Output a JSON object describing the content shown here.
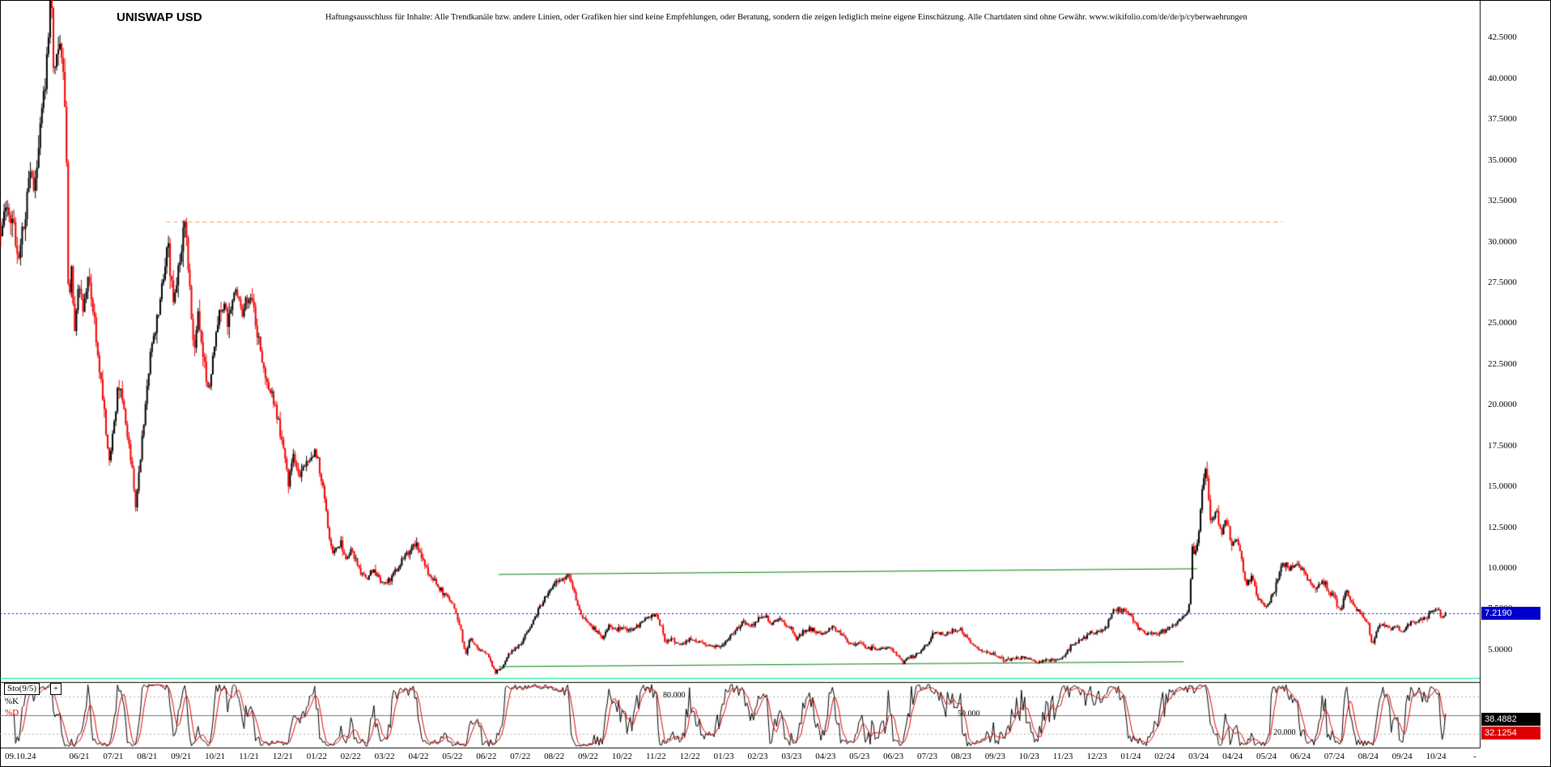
{
  "header": {
    "title": "UNISWAP USD",
    "disclaimer": "Haftungsausschluss für Inhalte: Alle Trendkanäle bzw. andere Linien, oder Grafiken hier sind keine Empfehlungen, oder Beratung, sondern die zeigen lediglich meine eigene Einschätzung. Alle Chartdaten sind ohne Gewähr.  www.wikifolio.com/de/de/p/cyberwaehrungen"
  },
  "price_axis": {
    "ticks": [
      "42.5000",
      "40.0000",
      "37.5000",
      "35.0000",
      "32.5000",
      "30.0000",
      "27.5000",
      "25.0000",
      "22.5000",
      "20.0000",
      "17.5000",
      "15.0000",
      "12.5000",
      "10.0000",
      "7.5000",
      "5.0000"
    ],
    "last_price": "7.2190",
    "last_price_value": 7.219,
    "badge_color": "#0000cd"
  },
  "time_axis": {
    "first_label": "09.10.24",
    "month_labels": [
      "06/21",
      "07/21",
      "08/21",
      "09/21",
      "10/21",
      "11/21",
      "12/21",
      "01/22",
      "02/22",
      "03/22",
      "04/22",
      "05/22",
      "06/22",
      "07/22",
      "08/22",
      "09/22",
      "10/22",
      "11/22",
      "12/22",
      "01/23",
      "02/23",
      "03/23",
      "04/23",
      "05/23",
      "06/23",
      "07/23",
      "08/23",
      "09/23",
      "10/23",
      "11/23",
      "12/23",
      "01/24",
      "02/24",
      "03/24",
      "04/24",
      "05/24",
      "06/24",
      "07/24",
      "08/24",
      "09/24",
      "10/24"
    ],
    "end_dash": "-"
  },
  "indicator": {
    "name_label": "Sto(9/5)",
    "add_button": "+",
    "k_label": "%K",
    "d_label": "%D",
    "k_value": "38.4882",
    "d_value": "32.1254",
    "k_color": "#000000",
    "d_color": "#e00000",
    "levels": [
      {
        "label": "80.000",
        "value": 80
      },
      {
        "label": "50.000",
        "value": 50
      },
      {
        "label": "20.000",
        "value": 20
      }
    ]
  },
  "chart_data": {
    "type": "candlestick",
    "title": "UNISWAP USD",
    "ylim": [
      3.0,
      44.8
    ],
    "y_ticks": [
      42.5,
      40,
      37.5,
      35,
      32.5,
      30,
      27.5,
      25,
      22.5,
      20,
      17.5,
      15,
      12.5,
      10,
      7.5,
      5
    ],
    "x_labels": [
      "06/21",
      "07/21",
      "08/21",
      "09/21",
      "10/21",
      "11/21",
      "12/21",
      "01/22",
      "02/22",
      "03/22",
      "04/22",
      "05/22",
      "06/22",
      "07/22",
      "08/22",
      "09/22",
      "10/22",
      "11/22",
      "12/22",
      "01/23",
      "02/23",
      "03/23",
      "04/23",
      "05/23",
      "06/23",
      "07/23",
      "08/23",
      "09/23",
      "10/23",
      "11/23",
      "12/23",
      "01/24",
      "02/24",
      "03/24",
      "04/24",
      "05/24",
      "06/24",
      "07/24",
      "08/24",
      "09/24",
      "10/24"
    ],
    "last_price": 7.219,
    "months_span": 42.64,
    "colors": {
      "up": "#000000",
      "down": "#f20000",
      "grid_dotted": "#aaaaaa",
      "grid_mid": "#777777"
    },
    "price_keyframes": [
      [
        0,
        30.5
      ],
      [
        0.2,
        32.5
      ],
      [
        0.4,
        30.8
      ],
      [
        0.55,
        28.8
      ],
      [
        0.75,
        31.5
      ],
      [
        0.9,
        35
      ],
      [
        1,
        32.8
      ],
      [
        1.15,
        36.5
      ],
      [
        1.34,
        39.5
      ],
      [
        1.45,
        43.2
      ],
      [
        1.52,
        44.8
      ],
      [
        1.6,
        40
      ],
      [
        1.72,
        42.6
      ],
      [
        1.85,
        40.5
      ],
      [
        1.95,
        37
      ],
      [
        2.02,
        26
      ],
      [
        2.1,
        29
      ],
      [
        2.2,
        24.5
      ],
      [
        2.32,
        28
      ],
      [
        2.45,
        25.5
      ],
      [
        2.6,
        28
      ],
      [
        2.8,
        24.5
      ],
      [
        3,
        21
      ],
      [
        3.2,
        16.8
      ],
      [
        3.35,
        18.5
      ],
      [
        3.5,
        21.5
      ],
      [
        3.65,
        19.5
      ],
      [
        3.85,
        17
      ],
      [
        4,
        13.8
      ],
      [
        4.2,
        18
      ],
      [
        4.4,
        22.5
      ],
      [
        4.6,
        24.8
      ],
      [
        4.8,
        27.5
      ],
      [
        4.95,
        29.5
      ],
      [
        5.1,
        26.5
      ],
      [
        5.25,
        28
      ],
      [
        5.44,
        31.2
      ],
      [
        5.6,
        27
      ],
      [
        5.7,
        23.5
      ],
      [
        5.85,
        25.5
      ],
      [
        6,
        22.5
      ],
      [
        6.15,
        21
      ],
      [
        6.35,
        24
      ],
      [
        6.55,
        26.5
      ],
      [
        6.75,
        25
      ],
      [
        6.95,
        27
      ],
      [
        7.15,
        25.5
      ],
      [
        7.35,
        26.5
      ],
      [
        7.55,
        25
      ],
      [
        7.75,
        22.5
      ],
      [
        7.95,
        21
      ],
      [
        8.15,
        19.5
      ],
      [
        8.34,
        17.5
      ],
      [
        8.5,
        15.3
      ],
      [
        8.65,
        17
      ],
      [
        8.8,
        15.5
      ],
      [
        9,
        16.5
      ],
      [
        9.34,
        17
      ],
      [
        9.55,
        14.5
      ],
      [
        9.7,
        11.8
      ],
      [
        9.85,
        10.8
      ],
      [
        10.05,
        11.6
      ],
      [
        10.2,
        10.5
      ],
      [
        10.34,
        11
      ],
      [
        10.6,
        10
      ],
      [
        10.8,
        9.3
      ],
      [
        11,
        9.9
      ],
      [
        11.2,
        9.2
      ],
      [
        11.34,
        9
      ],
      [
        11.6,
        9.6
      ],
      [
        11.9,
        10.6
      ],
      [
        12.2,
        11.4
      ],
      [
        12.34,
        11.2
      ],
      [
        12.6,
        9.8
      ],
      [
        12.9,
        8.8
      ],
      [
        13.2,
        8.3
      ],
      [
        13.34,
        7.8
      ],
      [
        13.55,
        6.6
      ],
      [
        13.72,
        4.7
      ],
      [
        13.85,
        5.7
      ],
      [
        14.05,
        5.2
      ],
      [
        14.2,
        4.9
      ],
      [
        14.34,
        4.8
      ],
      [
        14.6,
        3.6
      ],
      [
        14.8,
        3.9
      ],
      [
        15,
        4.7
      ],
      [
        15.2,
        5.1
      ],
      [
        15.34,
        5.3
      ],
      [
        15.6,
        6.3
      ],
      [
        15.8,
        7.1
      ],
      [
        16,
        7.9
      ],
      [
        16.2,
        8.7
      ],
      [
        16.34,
        8.9
      ],
      [
        16.55,
        9.3
      ],
      [
        16.75,
        9.65
      ],
      [
        16.9,
        8.7
      ],
      [
        17.1,
        7.2
      ],
      [
        17.34,
        6.6
      ],
      [
        17.55,
        6.2
      ],
      [
        17.75,
        5.6
      ],
      [
        17.95,
        6.4
      ],
      [
        18.15,
        6.2
      ],
      [
        18.34,
        6.4
      ],
      [
        18.6,
        6.1
      ],
      [
        18.9,
        6.6
      ],
      [
        19.15,
        7
      ],
      [
        19.34,
        7.2
      ],
      [
        19.5,
        6.4
      ],
      [
        19.62,
        5.4
      ],
      [
        19.8,
        5.7
      ],
      [
        20,
        5.3
      ],
      [
        20.2,
        5.5
      ],
      [
        20.34,
        5.6
      ],
      [
        20.7,
        5.4
      ],
      [
        21,
        5.2
      ],
      [
        21.34,
        5.3
      ],
      [
        21.6,
        6
      ],
      [
        21.9,
        6.7
      ],
      [
        22.2,
        6.5
      ],
      [
        22.34,
        6.8
      ],
      [
        22.55,
        7.05
      ],
      [
        22.75,
        6.6
      ],
      [
        22.95,
        6.9
      ],
      [
        23.15,
        6.5
      ],
      [
        23.34,
        6.2
      ],
      [
        23.5,
        5.6
      ],
      [
        23.7,
        6.1
      ],
      [
        23.95,
        6.3
      ],
      [
        24.2,
        6
      ],
      [
        24.34,
        6.1
      ],
      [
        24.55,
        6.4
      ],
      [
        24.8,
        5.9
      ],
      [
        25.05,
        5.3
      ],
      [
        25.34,
        5.4
      ],
      [
        25.6,
        5.1
      ],
      [
        25.9,
        5
      ],
      [
        26.2,
        5.1
      ],
      [
        26.34,
        4.9
      ],
      [
        26.6,
        4.2
      ],
      [
        26.75,
        4.5
      ],
      [
        27,
        4.7
      ],
      [
        27.34,
        5.3
      ],
      [
        27.55,
        6.1
      ],
      [
        27.75,
        5.9
      ],
      [
        28,
        6
      ],
      [
        28.2,
        6.3
      ],
      [
        28.34,
        6.2
      ],
      [
        28.6,
        5.5
      ],
      [
        28.85,
        5
      ],
      [
        29.1,
        4.8
      ],
      [
        29.34,
        4.7
      ],
      [
        29.6,
        4.3
      ],
      [
        29.85,
        4.45
      ],
      [
        30.1,
        4.5
      ],
      [
        30.34,
        4.4
      ],
      [
        30.6,
        4.2
      ],
      [
        30.9,
        4.35
      ],
      [
        31.2,
        4.4
      ],
      [
        31.34,
        4.5
      ],
      [
        31.6,
        5.3
      ],
      [
        31.9,
        5.6
      ],
      [
        32.2,
        6.1
      ],
      [
        32.34,
        6
      ],
      [
        32.6,
        6.4
      ],
      [
        32.8,
        7.3
      ],
      [
        33,
        7.4
      ],
      [
        33.2,
        7.2
      ],
      [
        33.34,
        7.1
      ],
      [
        33.6,
        6.2
      ],
      [
        33.85,
        5.9
      ],
      [
        34.1,
        6.1
      ],
      [
        34.34,
        6.1
      ],
      [
        34.6,
        6.5
      ],
      [
        34.85,
        7
      ],
      [
        35.05,
        7.3
      ],
      [
        35.15,
        11.2
      ],
      [
        35.25,
        10.8
      ],
      [
        35.34,
        12.2
      ],
      [
        35.45,
        14.8
      ],
      [
        35.55,
        16.3
      ],
      [
        35.7,
        12.6
      ],
      [
        35.85,
        13.6
      ],
      [
        36,
        12.1
      ],
      [
        36.15,
        12.9
      ],
      [
        36.3,
        11.6
      ],
      [
        36.45,
        11.8
      ],
      [
        36.6,
        10.6
      ],
      [
        36.75,
        8.9
      ],
      [
        36.9,
        9.6
      ],
      [
        37.1,
        8.1
      ],
      [
        37.34,
        7.6
      ],
      [
        37.6,
        8.7
      ],
      [
        37.8,
        10.4
      ],
      [
        38,
        9.9
      ],
      [
        38.2,
        10.2
      ],
      [
        38.34,
        10
      ],
      [
        38.6,
        9.2
      ],
      [
        38.8,
        8.7
      ],
      [
        39,
        9.3
      ],
      [
        39.2,
        8.4
      ],
      [
        39.34,
        8.2
      ],
      [
        39.5,
        7.3
      ],
      [
        39.7,
        8.5
      ],
      [
        39.9,
        7.8
      ],
      [
        40.1,
        7.2
      ],
      [
        40.34,
        6.5
      ],
      [
        40.45,
        5.3
      ],
      [
        40.6,
        6.3
      ],
      [
        40.8,
        6.6
      ],
      [
        41,
        6.2
      ],
      [
        41.2,
        6.4
      ],
      [
        41.34,
        6.1
      ],
      [
        41.6,
        6.6
      ],
      [
        41.85,
        6.9
      ],
      [
        42.1,
        7.1
      ],
      [
        42.34,
        7.6
      ],
      [
        42.5,
        7
      ],
      [
        42.64,
        7.219
      ]
    ],
    "overlays": [
      {
        "name": "resistance-dashed-line",
        "type": "hline",
        "color": "#f0a060",
        "dash": "dash",
        "price": 31.2,
        "from_month": 4.9,
        "to_month": 37.8
      },
      {
        "name": "range-top-green-line",
        "type": "segment",
        "color": "#008000",
        "dash": "solid",
        "price_from": 9.6,
        "price_to": 9.95,
        "from_month": 14.7,
        "to_month": 35.3
      },
      {
        "name": "range-bottom-green-line",
        "type": "segment",
        "color": "#008000",
        "dash": "solid",
        "price_from": 3.95,
        "price_to": 4.25,
        "from_month": 14.7,
        "to_month": 34.9
      },
      {
        "name": "support-springgreen-line",
        "type": "hline",
        "color": "#00e57b",
        "dash": "solid",
        "price": 3.23,
        "from_month": 0,
        "to_month": 43.63
      },
      {
        "name": "last-price-line",
        "type": "hline",
        "color": "#0000ff",
        "dash": "dot",
        "price": 7.219,
        "from_month": 0,
        "to_month": 43.63
      }
    ],
    "indicator_panel": {
      "type": "stochastic",
      "name": "Sto(9/5)",
      "period": 9,
      "smooth": 5,
      "ylim": [
        0,
        100
      ],
      "levels": [
        80,
        50,
        20
      ],
      "k_last": 38.4882,
      "d_last": 32.1254
    }
  }
}
